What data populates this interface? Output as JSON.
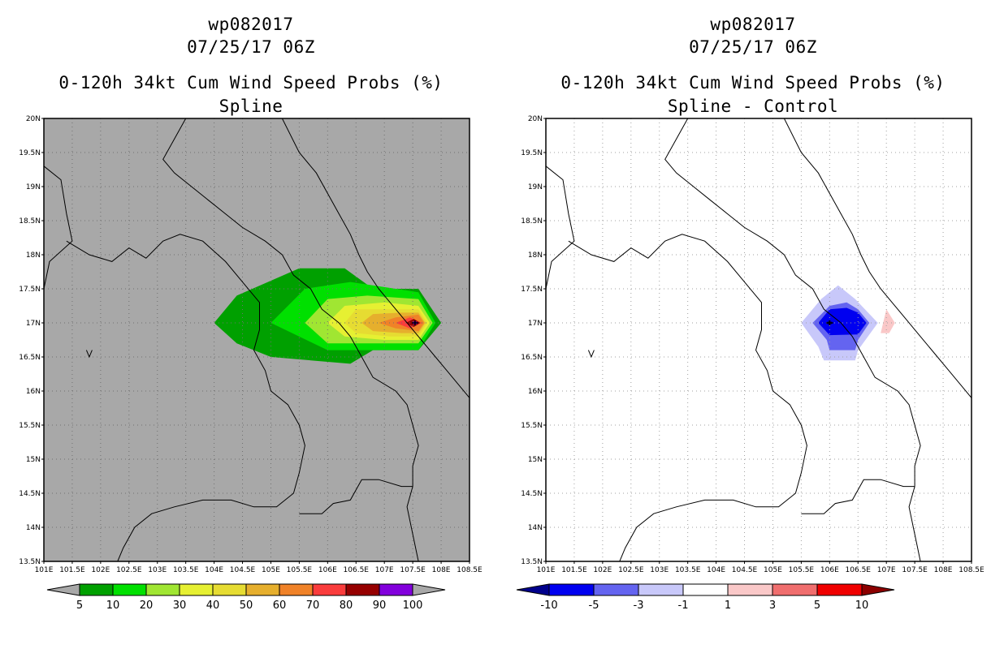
{
  "panels": [
    {
      "id": "spline",
      "title_line1": "wp082017",
      "title_line2": "07/25/17 06Z",
      "title_line3": "0-120h 34kt Cum Wind Speed Probs (%)",
      "title_line4": "Spline",
      "background_color": "#a8a8a8",
      "colorbar": {
        "colors": [
          "#a8a8a8",
          "#00a000",
          "#00e000",
          "#a0e632",
          "#e6f032",
          "#e6dc32",
          "#e6af2d",
          "#f08228",
          "#fa3c3c",
          "#960000",
          "#8200dc",
          "#a8a8a8"
        ],
        "labels": [
          "5",
          "10",
          "20",
          "30",
          "40",
          "50",
          "60",
          "70",
          "80",
          "90",
          "100"
        ]
      },
      "contours": [
        {
          "label": "5-10%",
          "color": "#00a000",
          "points": [
            [
              104.0,
              17.0
            ],
            [
              104.4,
              17.4
            ],
            [
              105.5,
              17.8
            ],
            [
              106.3,
              17.8
            ],
            [
              106.8,
              17.5
            ],
            [
              107.6,
              17.5
            ],
            [
              108.0,
              17.0
            ],
            [
              107.6,
              16.6
            ],
            [
              106.8,
              16.6
            ],
            [
              106.4,
              16.4
            ],
            [
              105.0,
              16.5
            ],
            [
              104.4,
              16.7
            ]
          ]
        },
        {
          "label": "10-20%",
          "color": "#00e000",
          "points": [
            [
              105.0,
              17.0
            ],
            [
              105.6,
              17.5
            ],
            [
              106.4,
              17.6
            ],
            [
              107.6,
              17.45
            ],
            [
              107.9,
              17.0
            ],
            [
              107.6,
              16.6
            ],
            [
              106.6,
              16.6
            ],
            [
              106.0,
              16.6
            ]
          ]
        },
        {
          "label": "20-30%",
          "color": "#a0e632",
          "points": [
            [
              105.6,
              17.0
            ],
            [
              106.0,
              17.35
            ],
            [
              106.7,
              17.4
            ],
            [
              107.6,
              17.35
            ],
            [
              107.85,
              17.0
            ],
            [
              107.6,
              16.7
            ],
            [
              106.8,
              16.7
            ],
            [
              106.0,
              16.7
            ]
          ]
        },
        {
          "label": "30-40%",
          "color": "#e6f032",
          "points": [
            [
              106.0,
              17.0
            ],
            [
              106.3,
              17.25
            ],
            [
              107.0,
              17.3
            ],
            [
              107.6,
              17.25
            ],
            [
              107.8,
              17.0
            ],
            [
              107.6,
              16.75
            ],
            [
              107.0,
              16.75
            ],
            [
              106.3,
              16.8
            ]
          ]
        },
        {
          "label": "40-50%",
          "color": "#e6dc32",
          "points": [
            [
              106.3,
              17.0
            ],
            [
              106.5,
              17.2
            ],
            [
              107.1,
              17.2
            ],
            [
              107.6,
              17.2
            ],
            [
              107.75,
              17.0
            ],
            [
              107.6,
              16.8
            ],
            [
              107.1,
              16.8
            ],
            [
              106.5,
              16.85
            ]
          ]
        },
        {
          "label": "50-60%",
          "color": "#e6af2d",
          "points": [
            [
              106.6,
              17.0
            ],
            [
              106.8,
              17.13
            ],
            [
              107.3,
              17.15
            ],
            [
              107.6,
              17.15
            ],
            [
              107.72,
              17.0
            ],
            [
              107.6,
              16.85
            ],
            [
              107.3,
              16.85
            ],
            [
              106.8,
              16.88
            ]
          ]
        },
        {
          "label": "60-70%",
          "color": "#f08228",
          "points": [
            [
              106.9,
              17.0
            ],
            [
              107.2,
              17.08
            ],
            [
              107.6,
              17.12
            ],
            [
              107.7,
              17.0
            ],
            [
              107.6,
              16.88
            ],
            [
              107.2,
              16.92
            ]
          ]
        },
        {
          "label": "70-80%",
          "color": "#fa3c3c",
          "points": [
            [
              107.2,
              17.0
            ],
            [
              107.45,
              17.08
            ],
            [
              107.66,
              17.0
            ],
            [
              107.45,
              16.92
            ]
          ]
        },
        {
          "label": "80-90%",
          "color": "#960000",
          "points": [
            [
              107.38,
              17.0
            ],
            [
              107.52,
              17.06
            ],
            [
              107.63,
              17.0
            ],
            [
              107.52,
              16.94
            ]
          ]
        },
        {
          "label": "90-100%",
          "color": "#8200dc",
          "points": [
            [
              107.48,
              17.0
            ],
            [
              107.54,
              17.03
            ],
            [
              107.6,
              17.0
            ],
            [
              107.54,
              16.97
            ]
          ]
        }
      ]
    },
    {
      "id": "diff",
      "title_line1": "wp082017",
      "title_line2": "07/25/17 06Z",
      "title_line3": "0-120h 34kt Cum Wind Speed Probs (%)",
      "title_line4": "Spline - Control",
      "background_color": "#ffffff",
      "colorbar": {
        "colors": [
          "#00008c",
          "#0000f0",
          "#6464f0",
          "#c8c8fa",
          "#ffffff",
          "#fac8c8",
          "#f06e6e",
          "#f00000",
          "#8c0000"
        ],
        "labels": [
          "-10",
          "-5",
          "-3",
          "-1",
          "1",
          "3",
          "5",
          "10"
        ]
      },
      "contours": [
        {
          "label": "-3 to -1",
          "color": "#c8c8fa",
          "points": [
            [
              105.5,
              17.0
            ],
            [
              105.85,
              17.35
            ],
            [
              106.15,
              17.55
            ],
            [
              106.45,
              17.35
            ],
            [
              106.85,
              17.0
            ],
            [
              106.5,
              16.6
            ],
            [
              106.45,
              16.45
            ],
            [
              105.9,
              16.45
            ],
            [
              105.8,
              16.65
            ]
          ]
        },
        {
          "label": "-5 to -3",
          "color": "#6464f0",
          "points": [
            [
              105.7,
              17.0
            ],
            [
              106.0,
              17.25
            ],
            [
              106.3,
              17.3
            ],
            [
              106.5,
              17.2
            ],
            [
              106.7,
              17.0
            ],
            [
              106.5,
              16.75
            ],
            [
              106.45,
              16.6
            ],
            [
              106.0,
              16.6
            ],
            [
              105.95,
              16.75
            ]
          ]
        },
        {
          "label": "-10 to -5",
          "color": "#0000f0",
          "points": [
            [
              105.8,
              17.0
            ],
            [
              106.0,
              17.2
            ],
            [
              106.3,
              17.22
            ],
            [
              106.5,
              17.15
            ],
            [
              106.65,
              17.0
            ],
            [
              106.5,
              16.83
            ],
            [
              106.0,
              16.82
            ]
          ]
        },
        {
          "label": "< -10",
          "color": "#00008c",
          "points": [
            [
              105.93,
              17.0
            ],
            [
              106.0,
              17.04
            ],
            [
              106.07,
              17.0
            ],
            [
              106.0,
              16.96
            ]
          ]
        },
        {
          "label": "1 to 3",
          "color": "#fac8c8",
          "points": [
            [
              106.9,
              16.85
            ],
            [
              107.0,
              17.2
            ],
            [
              107.15,
              17.0
            ],
            [
              107.05,
              16.85
            ]
          ]
        }
      ]
    }
  ],
  "axes": {
    "x_ticks": [
      "101E",
      "101.5E",
      "102E",
      "102.5E",
      "103E",
      "103.5E",
      "104E",
      "104.5E",
      "105E",
      "105.5E",
      "106E",
      "106.5E",
      "107E",
      "107.5E",
      "108E",
      "108.5E"
    ],
    "y_ticks": [
      "13.5N",
      "14N",
      "14.5N",
      "15N",
      "15.5N",
      "16N",
      "16.5N",
      "17N",
      "17.5N",
      "18N",
      "18.5N",
      "19N",
      "19.5N",
      "20N"
    ],
    "lon_range": [
      101.0,
      108.5
    ],
    "lat_range": [
      13.5,
      20.0
    ]
  },
  "coastline": [
    [
      105.2,
      20.0
    ],
    [
      105.5,
      19.5
    ],
    [
      105.8,
      19.2
    ],
    [
      106.0,
      18.9
    ],
    [
      106.2,
      18.6
    ],
    [
      106.4,
      18.3
    ],
    [
      106.55,
      18.0
    ],
    [
      106.7,
      17.75
    ],
    [
      106.9,
      17.5
    ],
    [
      107.1,
      17.3
    ],
    [
      107.35,
      17.05
    ],
    [
      107.6,
      16.8
    ],
    [
      107.9,
      16.5
    ],
    [
      108.1,
      16.3
    ],
    [
      108.3,
      16.1
    ],
    [
      108.5,
      15.9
    ]
  ],
  "borders": [
    [
      [
        103.5,
        20.0
      ],
      [
        103.3,
        19.7
      ],
      [
        103.1,
        19.4
      ],
      [
        103.3,
        19.2
      ],
      [
        103.6,
        19.0
      ],
      [
        103.9,
        18.8
      ],
      [
        104.2,
        18.6
      ],
      [
        104.5,
        18.4
      ],
      [
        104.9,
        18.2
      ],
      [
        105.2,
        18.0
      ],
      [
        105.4,
        17.7
      ],
      [
        105.7,
        17.5
      ],
      [
        105.9,
        17.2
      ],
      [
        106.2,
        17.0
      ],
      [
        106.4,
        16.8
      ],
      [
        106.6,
        16.5
      ],
      [
        106.8,
        16.2
      ],
      [
        107.2,
        16.0
      ],
      [
        107.4,
        15.8
      ],
      [
        107.5,
        15.5
      ],
      [
        107.6,
        15.2
      ],
      [
        107.5,
        14.9
      ],
      [
        107.5,
        14.6
      ],
      [
        107.4,
        14.3
      ],
      [
        107.5,
        13.9
      ],
      [
        107.6,
        13.5
      ]
    ],
    [
      [
        101.0,
        19.3
      ],
      [
        101.3,
        19.1
      ],
      [
        101.4,
        18.6
      ],
      [
        101.5,
        18.2
      ],
      [
        101.1,
        17.9
      ],
      [
        101.0,
        17.5
      ]
    ],
    [
      [
        101.4,
        18.2
      ],
      [
        101.8,
        18.0
      ],
      [
        102.2,
        17.9
      ],
      [
        102.5,
        18.1
      ],
      [
        102.8,
        17.95
      ],
      [
        103.1,
        18.2
      ],
      [
        103.4,
        18.3
      ],
      [
        103.8,
        18.2
      ],
      [
        104.2,
        17.9
      ],
      [
        104.5,
        17.6
      ],
      [
        104.8,
        17.3
      ],
      [
        104.8,
        16.9
      ],
      [
        104.7,
        16.6
      ],
      [
        104.9,
        16.3
      ],
      [
        105.0,
        16.0
      ],
      [
        105.3,
        15.8
      ],
      [
        105.5,
        15.5
      ],
      [
        105.6,
        15.2
      ],
      [
        105.5,
        14.8
      ],
      [
        105.4,
        14.5
      ],
      [
        105.1,
        14.3
      ],
      [
        104.7,
        14.3
      ],
      [
        104.3,
        14.4
      ],
      [
        103.8,
        14.4
      ],
      [
        103.3,
        14.3
      ],
      [
        102.9,
        14.2
      ],
      [
        102.6,
        14.0
      ],
      [
        102.4,
        13.7
      ],
      [
        102.3,
        13.5
      ]
    ],
    [
      [
        105.5,
        14.2
      ],
      [
        105.9,
        14.2
      ],
      [
        106.1,
        14.35
      ],
      [
        106.4,
        14.4
      ],
      [
        106.6,
        14.7
      ],
      [
        106.9,
        14.7
      ],
      [
        107.3,
        14.6
      ],
      [
        107.5,
        14.6
      ]
    ]
  ],
  "island_marker": [
    [
      101.75,
      16.6
    ],
    [
      101.8,
      16.5
    ],
    [
      101.85,
      16.6
    ]
  ]
}
